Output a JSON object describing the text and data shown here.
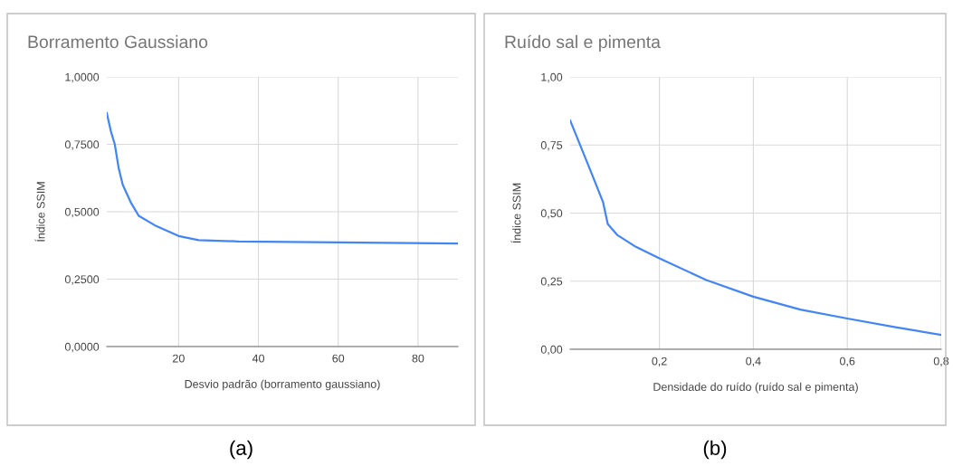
{
  "chart_data": [
    {
      "type": "line",
      "title": "Borramento Gaussiano",
      "xlabel": "Desvio padrão (borramento gaussiano)",
      "ylabel": "Índice SSIM",
      "annotations": [
        "(a)"
      ],
      "series": [
        {
          "color": "#4285f4",
          "x": [
            2,
            3,
            4,
            5,
            6,
            8,
            10,
            14,
            20,
            25,
            35,
            60,
            90
          ],
          "values": [
            0.866,
            0.8,
            0.75,
            0.66,
            0.6,
            0.535,
            0.485,
            0.45,
            0.41,
            0.395,
            0.39,
            0.386,
            0.382
          ]
        }
      ],
      "xlim": [
        2,
        90
      ],
      "ylim": [
        0,
        1
      ],
      "xticks": [
        20,
        40,
        60,
        80
      ],
      "yticks": [
        {
          "value": 0,
          "label": "0,0000"
        },
        {
          "value": 0.25,
          "label": "0,2500"
        },
        {
          "value": 0.5,
          "label": "0,5000"
        },
        {
          "value": 0.75,
          "label": "0,7500"
        },
        {
          "value": 1,
          "label": "1,0000"
        }
      ],
      "grid": true,
      "legend": false,
      "marker": "none",
      "line_style": "solid"
    },
    {
      "type": "line",
      "title": "Ruído sal e pimenta",
      "xlabel": "Densidade do ruído (ruído sal e pimenta)",
      "ylabel": "Índice SSIM",
      "annotations": [
        "(b)"
      ],
      "series": [
        {
          "color": "#4285f4",
          "x": [
            0.01,
            0.05,
            0.08,
            0.09,
            0.11,
            0.15,
            0.2,
            0.3,
            0.4,
            0.5,
            0.6,
            0.7,
            0.8
          ],
          "values": [
            0.84,
            0.67,
            0.54,
            0.46,
            0.42,
            0.376,
            0.334,
            0.254,
            0.193,
            0.146,
            0.113,
            0.082,
            0.053
          ]
        }
      ],
      "xlim": [
        0.01,
        0.8
      ],
      "ylim": [
        0,
        1
      ],
      "xticks": [
        {
          "value": 0.2,
          "label": "0,2"
        },
        {
          "value": 0.4,
          "label": "0,4"
        },
        {
          "value": 0.6,
          "label": "0,6"
        },
        {
          "value": 0.8,
          "label": "0,8"
        }
      ],
      "yticks": [
        {
          "value": 0,
          "label": "0,00"
        },
        {
          "value": 0.25,
          "label": "0,25"
        },
        {
          "value": 0.5,
          "label": "0,50"
        },
        {
          "value": 0.75,
          "label": "0,75"
        },
        {
          "value": 1,
          "label": "1,00"
        }
      ],
      "grid": true,
      "legend": false,
      "marker": "none",
      "line_style": "solid"
    }
  ]
}
